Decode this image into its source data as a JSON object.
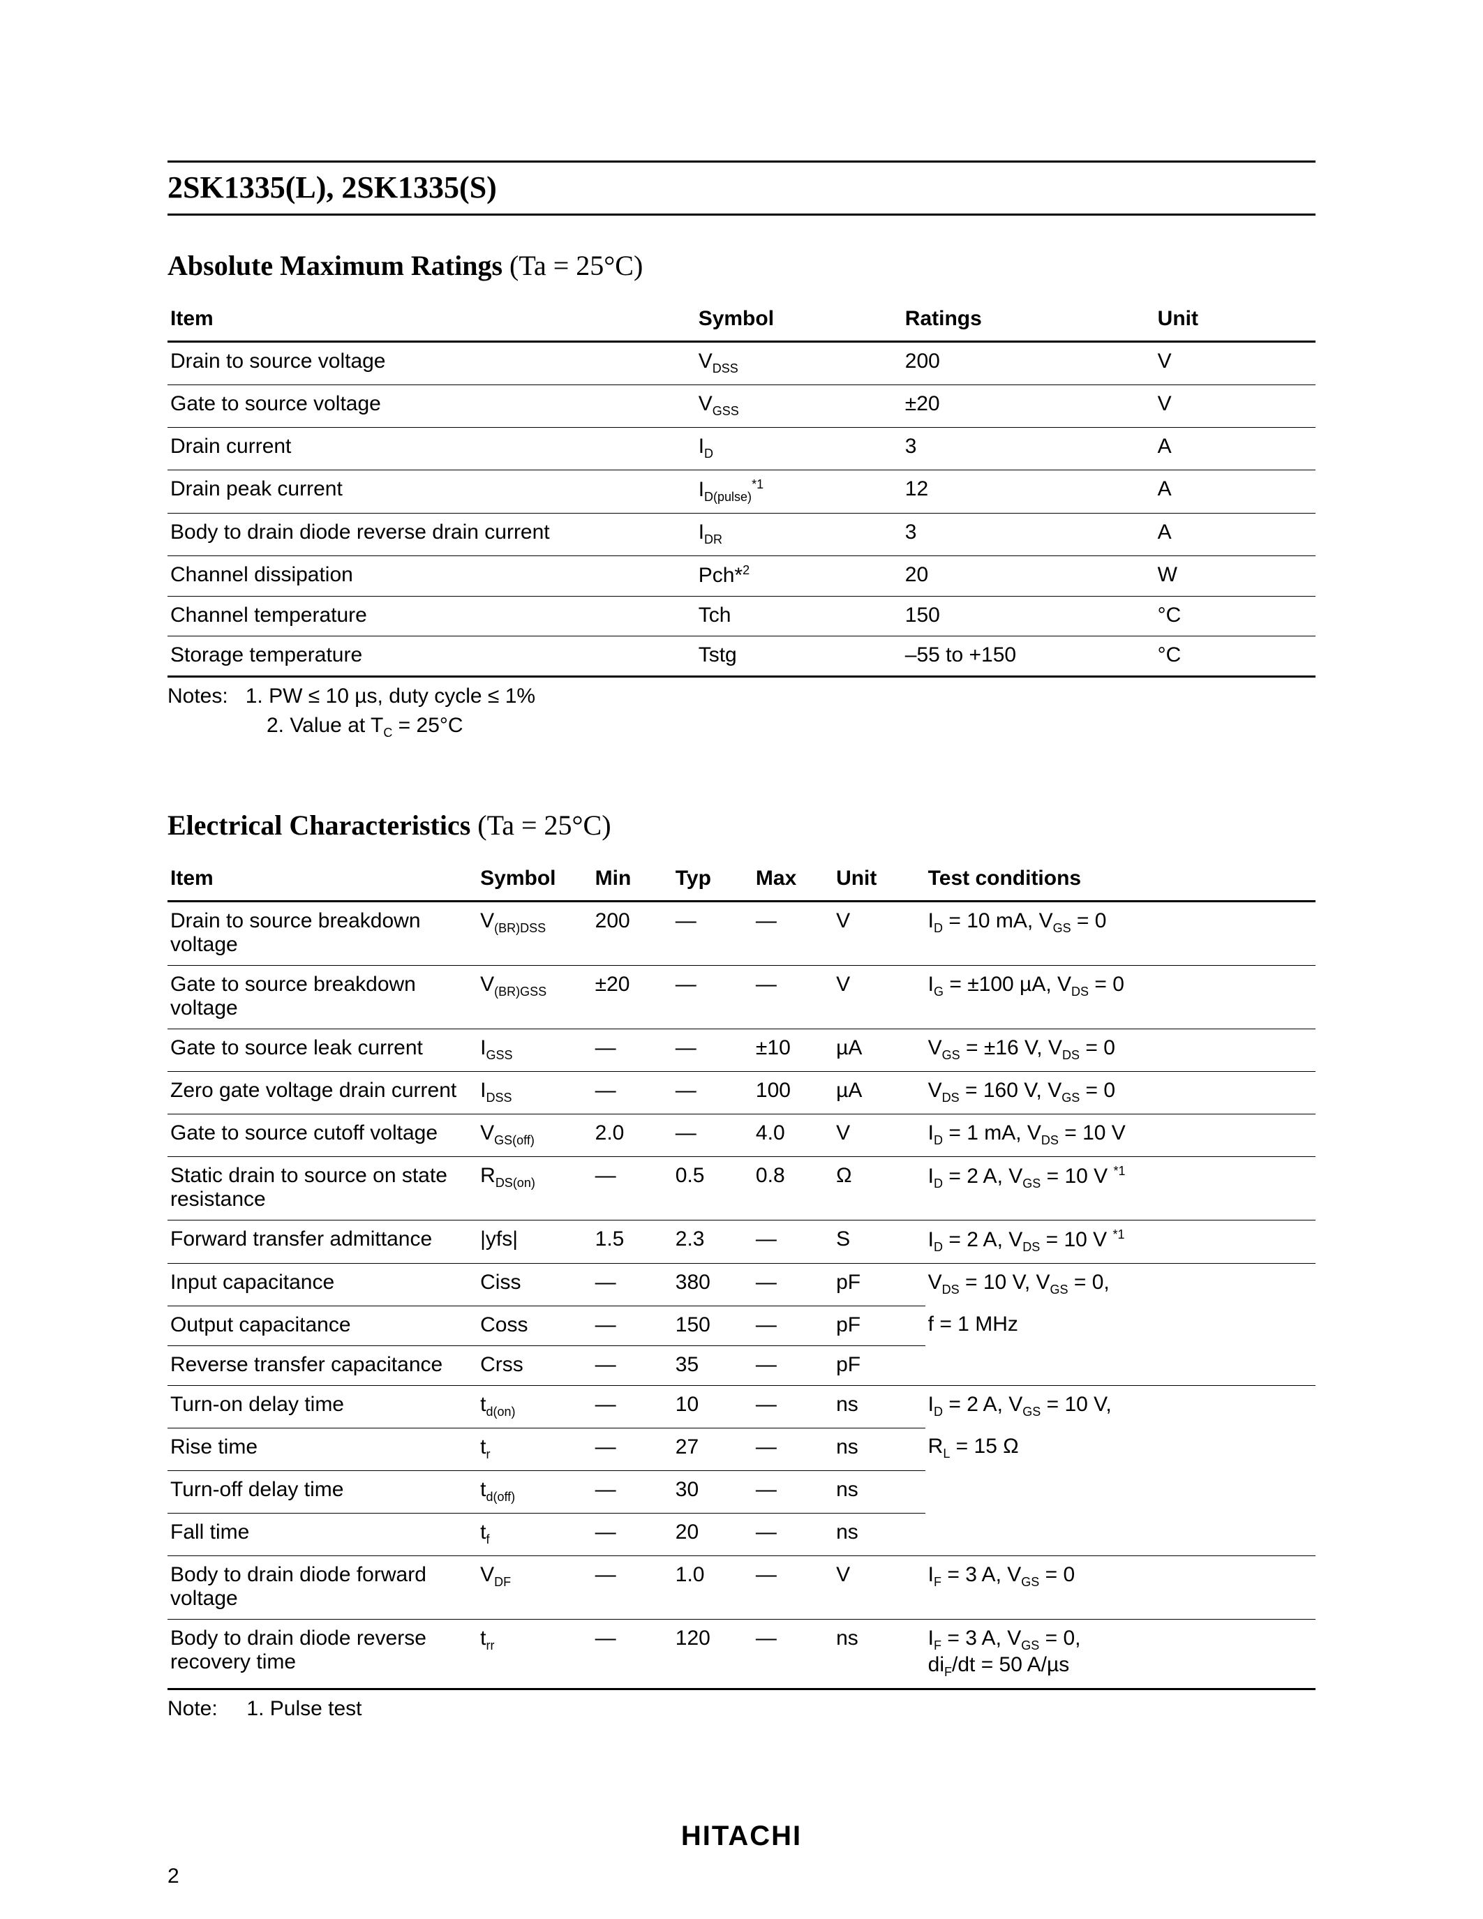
{
  "page": {
    "title": "2SK1335(L), 2SK1335(S)",
    "brand": "HITACHI",
    "page_number": "2"
  },
  "section1": {
    "heading_bold": "Absolute Maximum Ratings",
    "heading_rest": " (Ta = 25°C)",
    "columns": {
      "item": "Item",
      "symbol": "Symbol",
      "ratings": "Ratings",
      "unit": "Unit"
    },
    "rows": [
      {
        "item": "Drain to source voltage",
        "symbol_html": "V<sub>DSS</sub>",
        "ratings": "200",
        "unit": "V"
      },
      {
        "item": "Gate to source voltage",
        "symbol_html": "V<sub>GSS</sub>",
        "ratings": "±20",
        "unit": "V"
      },
      {
        "item": "Drain current",
        "symbol_html": "I<sub>D</sub>",
        "ratings": "3",
        "unit": "A"
      },
      {
        "item": "Drain peak current",
        "symbol_html": "I<sub>D(pulse)</sub><sup>*1</sup>",
        "ratings": "12",
        "unit": "A"
      },
      {
        "item": "Body to drain diode reverse drain current",
        "symbol_html": "I<sub>DR</sub>",
        "ratings": "3",
        "unit": "A"
      },
      {
        "item": "Channel dissipation",
        "symbol_html": "Pch*<sup>2</sup>",
        "ratings": "20",
        "unit": "W"
      },
      {
        "item": "Channel temperature",
        "symbol_html": "Tch",
        "ratings": "150",
        "unit": "°C"
      },
      {
        "item": "Storage temperature",
        "symbol_html": "Tstg",
        "ratings": "–55 to +150",
        "unit": "°C"
      }
    ],
    "notes_label": "Notes:",
    "note1": "1.  PW ≤ 10 µs, duty cycle ≤ 1%",
    "note2_html": "2.  Value at T<sub>C</sub> = 25°C"
  },
  "section2": {
    "heading_bold": "Electrical Characteristics",
    "heading_rest": " (Ta = 25°C)",
    "columns": {
      "item": "Item",
      "symbol": "Symbol",
      "min": "Min",
      "typ": "Typ",
      "max": "Max",
      "unit": "Unit",
      "cond": "Test conditions"
    },
    "rows": [
      {
        "item": "Drain to source breakdown voltage",
        "symbol_html": "V<sub>(BR)DSS</sub>",
        "min": "200",
        "typ": "—",
        "max": "—",
        "unit": "V",
        "cond_html": "I<sub>D</sub> = 10 mA, V<sub>GS</sub> = 0"
      },
      {
        "item": "Gate to source breakdown voltage",
        "symbol_html": "V<sub>(BR)GSS</sub>",
        "min": "±20",
        "typ": "—",
        "max": "—",
        "unit": "V",
        "cond_html": "I<sub>G</sub> = ±100 µA, V<sub>DS</sub> = 0"
      },
      {
        "item": "Gate to source leak current",
        "symbol_html": "I<sub>GSS</sub>",
        "min": "—",
        "typ": "—",
        "max": "±10",
        "unit": "µA",
        "cond_html": "V<sub>GS</sub> = ±16 V, V<sub>DS</sub> = 0"
      },
      {
        "item": "Zero gate voltage drain current",
        "symbol_html": "I<sub>DSS</sub>",
        "min": "—",
        "typ": "—",
        "max": "100",
        "unit": "µA",
        "cond_html": "V<sub>DS</sub> = 160 V, V<sub>GS</sub> = 0"
      },
      {
        "item": "Gate to source cutoff voltage",
        "symbol_html": "V<sub>GS(off)</sub>",
        "min": "2.0",
        "typ": "—",
        "max": "4.0",
        "unit": "V",
        "cond_html": "I<sub>D</sub> = 1 mA, V<sub>DS</sub> = 10 V"
      },
      {
        "item": "Static drain to source on state resistance",
        "symbol_html": "R<sub>DS(on)</sub>",
        "min": "—",
        "typ": "0.5",
        "max": "0.8",
        "unit": "Ω",
        "cond_html": "I<sub>D</sub> = 2 A, V<sub>GS</sub> = 10 V <sup>*1</sup>"
      },
      {
        "item": "Forward transfer admittance",
        "symbol_html": "|yfs|",
        "min": "1.5",
        "typ": "2.3",
        "max": "—",
        "unit": "S",
        "cond_html": "I<sub>D</sub> = 2 A, V<sub>DS</sub> = 10 V <sup>*1</sup>"
      },
      {
        "item": "Input capacitance",
        "symbol_html": "Ciss",
        "min": "—",
        "typ": "380",
        "max": "—",
        "unit": "pF",
        "cond_html": "V<sub>DS</sub> = 10 V, V<sub>GS</sub> = 0,",
        "cond_noborder": true
      },
      {
        "item": "Output capacitance",
        "symbol_html": "Coss",
        "min": "—",
        "typ": "150",
        "max": "—",
        "unit": "pF",
        "cond_html": "f = 1 MHz",
        "cond_noborder": true
      },
      {
        "item": "Reverse transfer capacitance",
        "symbol_html": "Crss",
        "min": "—",
        "typ": "35",
        "max": "—",
        "unit": "pF",
        "cond_html": ""
      },
      {
        "item": "Turn-on delay time",
        "symbol_html": "t<sub>d(on)</sub>",
        "min": "—",
        "typ": "10",
        "max": "—",
        "unit": "ns",
        "cond_html": "I<sub>D</sub> = 2 A, V<sub>GS</sub> = 10 V,",
        "cond_noborder": true
      },
      {
        "item": "Rise time",
        "symbol_html": "t<sub>r</sub>",
        "min": "—",
        "typ": "27",
        "max": "—",
        "unit": "ns",
        "cond_html": "R<sub>L</sub> = 15 Ω",
        "cond_noborder": true
      },
      {
        "item": "Turn-off delay time",
        "symbol_html": "t<sub>d(off)</sub>",
        "min": "—",
        "typ": "30",
        "max": "—",
        "unit": "ns",
        "cond_html": "",
        "cond_noborder": true
      },
      {
        "item": "Fall time",
        "symbol_html": "t<sub>f</sub>",
        "min": "—",
        "typ": "20",
        "max": "—",
        "unit": "ns",
        "cond_html": ""
      },
      {
        "item": "Body to drain diode forward voltage",
        "symbol_html": "V<sub>DF</sub>",
        "min": "—",
        "typ": "1.0",
        "max": "—",
        "unit": "V",
        "cond_html": "I<sub>F</sub> = 3 A, V<sub>GS</sub> = 0"
      },
      {
        "item": "Body to drain diode reverse recovery time",
        "symbol_html": "t<sub>rr</sub>",
        "min": "—",
        "typ": "120",
        "max": "—",
        "unit": "ns",
        "cond_html": "I<sub>F</sub> = 3 A, V<sub>GS</sub> = 0,<br>di<sub>F</sub>/dt = 50 A/µs"
      }
    ],
    "notes_label": "Note:",
    "note1": "1.  Pulse test"
  }
}
